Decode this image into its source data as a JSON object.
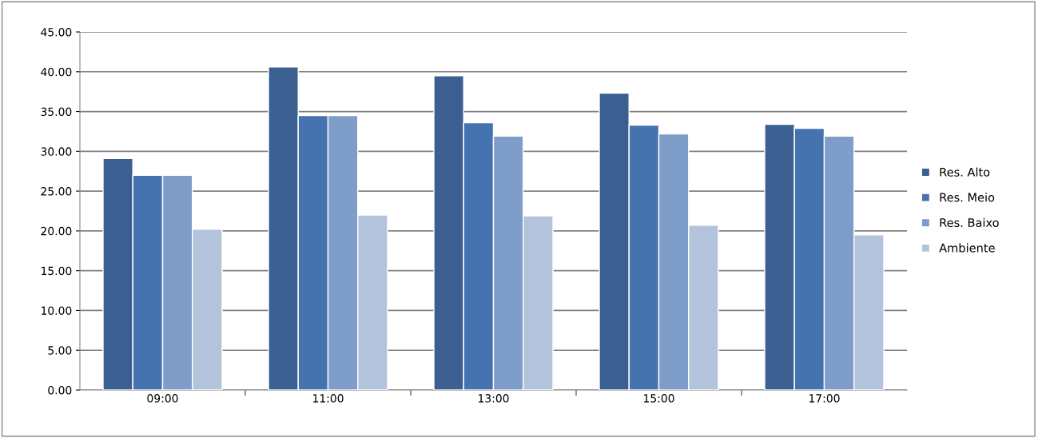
{
  "chart_data": {
    "type": "bar",
    "categories": [
      "09:00",
      "11:00",
      "13:00",
      "15:00",
      "17:00"
    ],
    "series": [
      {
        "name": "Res. Alto",
        "color": "#3b5f91",
        "values": [
          29.1,
          40.6,
          39.5,
          37.3,
          33.4
        ]
      },
      {
        "name": "Res. Meio",
        "color": "#4573b0",
        "values": [
          27.0,
          34.5,
          33.6,
          33.3,
          32.9
        ]
      },
      {
        "name": "Res. Baixo",
        "color": "#7f9dc9",
        "values": [
          27.0,
          34.5,
          31.9,
          32.2,
          31.9
        ]
      },
      {
        "name": "Ambiente",
        "color": "#b4c3dc",
        "values": [
          20.2,
          22.0,
          21.9,
          20.7,
          19.5
        ]
      }
    ],
    "ylim": [
      0,
      45
    ],
    "yticks": [
      {
        "value": 0,
        "label": "0.00"
      },
      {
        "value": 5,
        "label": "5.00"
      },
      {
        "value": 10,
        "label": "10.00"
      },
      {
        "value": 15,
        "label": "15.00"
      },
      {
        "value": 20,
        "label": "20.00"
      },
      {
        "value": 25,
        "label": "25.00"
      },
      {
        "value": 30,
        "label": "30.00"
      },
      {
        "value": 35,
        "label": "35.00"
      },
      {
        "value": 40,
        "label": "40.00"
      },
      {
        "value": 45,
        "label": "45.00"
      }
    ],
    "grid": "y",
    "legend": "right"
  }
}
